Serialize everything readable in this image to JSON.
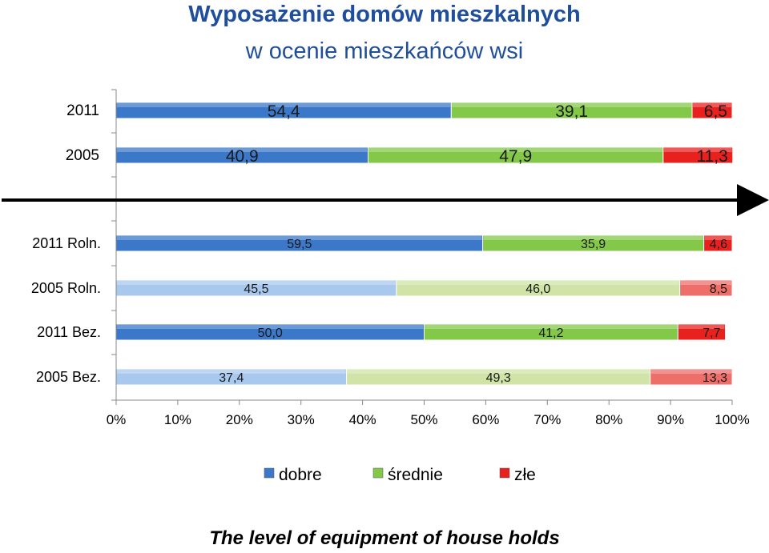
{
  "title": "Wyposażenie domów mieszkalnych",
  "subtitle": "w ocenie mieszkańców wsi",
  "caption": "The level of equipment of house holds",
  "colors": {
    "dobre": "#3b78c9",
    "dobre_light": "#a9c8ee",
    "srednie": "#84c84a",
    "srednie_light": "#cfe4a6",
    "zle": "#e8201e",
    "zle_light": "#ee6f6a",
    "title": "#1f4e9a",
    "arrow": "#000000"
  },
  "chart_data": {
    "type": "bar",
    "orientation": "horizontal",
    "stacked": true,
    "categories": [
      "2011",
      "2005",
      "2011 Roln.",
      "2005 Roln.",
      "2011   Bez.",
      "2005   Bez."
    ],
    "series": [
      {
        "name": "dobre",
        "values": [
          54.4,
          40.9,
          59.5,
          45.5,
          50.0,
          37.4
        ]
      },
      {
        "name": "średnie",
        "values": [
          39.1,
          47.9,
          35.9,
          46.0,
          41.2,
          49.3
        ]
      },
      {
        "name": "złe",
        "values": [
          6.5,
          11.3,
          4.6,
          8.5,
          7.7,
          13.3
        ]
      }
    ],
    "labels": [
      [
        "54,4",
        "39,1",
        "6,5"
      ],
      [
        "40,9",
        "47,9",
        "11,3"
      ],
      [
        "59,5",
        "35,9",
        "4,6"
      ],
      [
        "45,5",
        "46,0",
        "8,5"
      ],
      [
        "50,0",
        "41,2",
        "7,7"
      ],
      [
        "37,4",
        "49,3",
        "13,3"
      ]
    ],
    "light_rows": [
      false,
      false,
      false,
      true,
      false,
      true
    ],
    "xlim": [
      0,
      100
    ],
    "xticks": [
      "0%",
      "10%",
      "20%",
      "30%",
      "40%",
      "50%",
      "60%",
      "70%",
      "80%",
      "90%",
      "100%"
    ],
    "legend": {
      "placement": "bottom",
      "entries": [
        "dobre",
        "średnie",
        "złe"
      ]
    },
    "separator": "arrow between 2005 and 2011 Roln."
  }
}
